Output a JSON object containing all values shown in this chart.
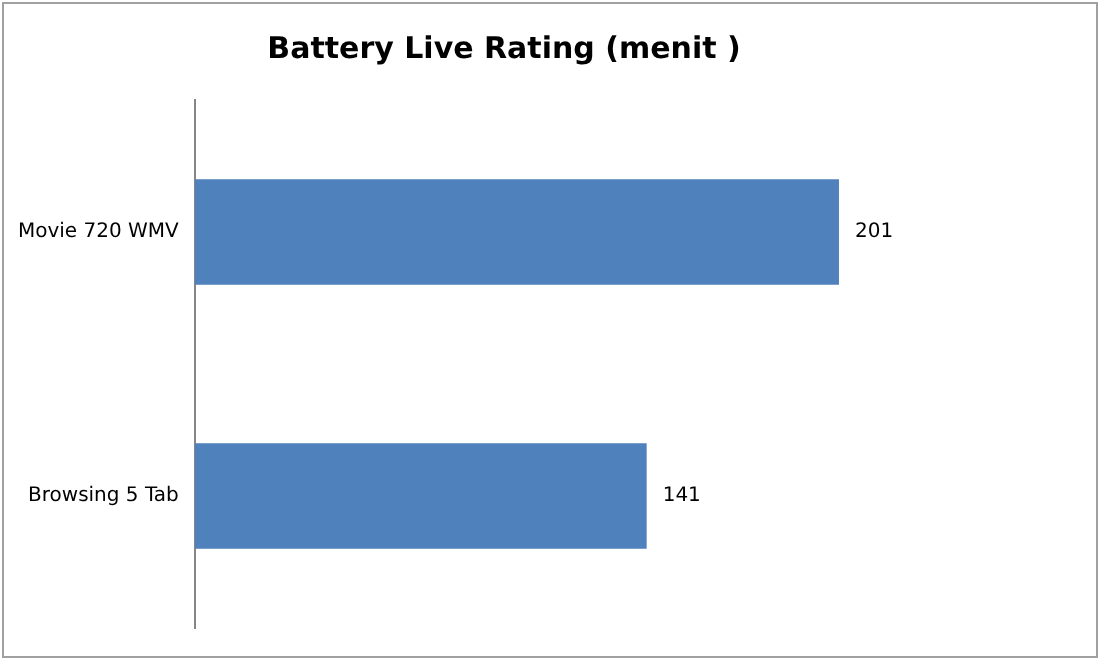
{
  "chart_data": {
    "type": "bar",
    "orientation": "horizontal",
    "title": "Battery Live Rating (menit )",
    "categories": [
      "Movie 720 WMV",
      "Browsing 5 Tab"
    ],
    "values": [
      201,
      141
    ],
    "color": "#4f81bd",
    "data_labels": true,
    "legend": false
  }
}
